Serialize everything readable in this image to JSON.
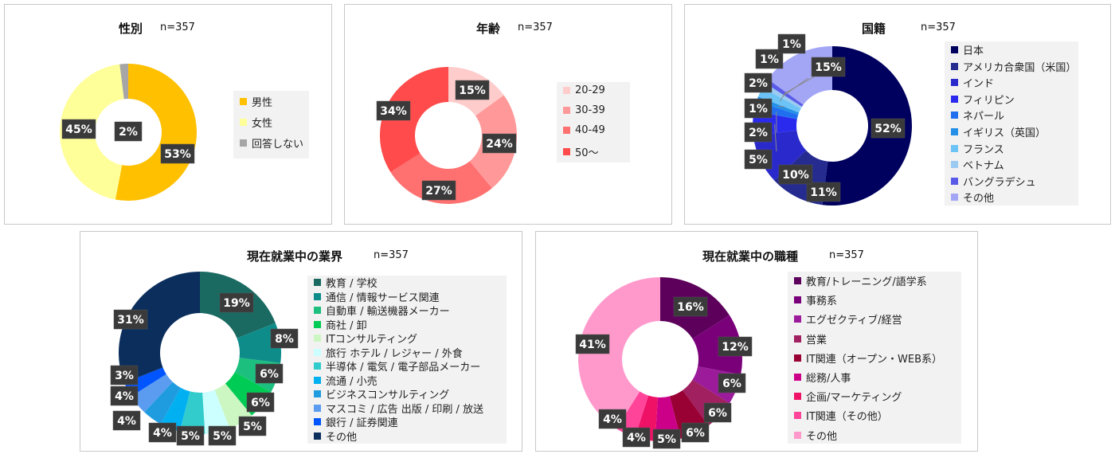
{
  "chart_data": [
    {
      "type": "pie",
      "title": "性別",
      "n_label": "n=357",
      "categories": [
        "男性",
        "女性",
        "回答しない"
      ],
      "values": [
        53,
        45,
        2
      ],
      "labels": [
        "53%",
        "45%",
        "2%"
      ],
      "colors": [
        "#FFC000",
        "#FFFF99",
        "#A6A6A6"
      ]
    },
    {
      "type": "pie",
      "title": "年齢",
      "n_label": "n=357",
      "categories": [
        "20-29",
        "30-39",
        "40-49",
        "50～"
      ],
      "values": [
        15,
        24,
        27,
        34
      ],
      "labels": [
        "15%",
        "24%",
        "27%",
        "34%"
      ],
      "colors": [
        "#FFCCCC",
        "#FF9999",
        "#FF7070",
        "#FF4B4B"
      ]
    },
    {
      "type": "pie",
      "title": "国籍",
      "n_label": "n=357",
      "categories": [
        "日本",
        "アメリカ合衆国（米国）",
        "インド",
        "フィリピン",
        "ネパール",
        "イギリス（英国）",
        "フランス",
        "ベトナム",
        "バングラデシュ",
        "その他"
      ],
      "values": [
        52,
        11,
        10,
        5,
        2,
        1,
        2,
        1,
        1,
        15
      ],
      "labels": [
        "52%",
        "11%",
        "10%",
        "5%",
        "2%",
        "1%",
        "2%",
        "1%",
        "1%",
        "15%"
      ],
      "colors": [
        "#00005E",
        "#252B8F",
        "#2A2ACC",
        "#2A2AEE",
        "#1F6FEE",
        "#2490E8",
        "#6CC3F5",
        "#9CCBF2",
        "#5A5AE8",
        "#A3A6F5"
      ]
    },
    {
      "type": "pie",
      "title": "現在就業中の業界",
      "n_label": "n=357",
      "categories": [
        "教育 / 学校",
        "通信 / 情報サービス関連",
        "自動車 / 輸送機器メーカー",
        "商社 / 卸",
        "ITコンサルティング",
        "旅行 ホテル / レジャー / 外食",
        "半導体 / 電気 / 電子部品メーカー",
        "流通 / 小売",
        "ビジネスコンサルティング",
        "マスコミ / 広告 出版 / 印刷 / 放送",
        "銀行 / 証券関連",
        "その他"
      ],
      "values": [
        19,
        8,
        6,
        6,
        5,
        5,
        5,
        4,
        4,
        4,
        3,
        31
      ],
      "labels": [
        "19%",
        "8%",
        "6%",
        "6%",
        "5%",
        "5%",
        "5%",
        "4%",
        "4%",
        "4%",
        "3%",
        "31%"
      ],
      "colors": [
        "#1A6A62",
        "#0E8C8A",
        "#1DBF7F",
        "#00CC55",
        "#CCF7C2",
        "#CCFFFF",
        "#33CCCC",
        "#00B0F0",
        "#1F9CE0",
        "#5B9BF0",
        "#0055FF",
        "#0B2E5C"
      ]
    },
    {
      "type": "pie",
      "title": "現在就業中の職種",
      "n_label": "n=357",
      "categories": [
        "教育/トレーニング/語学系",
        "事務系",
        "エグゼクティブ/経営",
        "営業",
        "IT関連（オープン・WEB系）",
        "総務/人事",
        "企画/マーケティング",
        "IT関連（その他）",
        "その他"
      ],
      "values": [
        16,
        12,
        6,
        6,
        6,
        5,
        4,
        4,
        41
      ],
      "labels": [
        "16%",
        "12%",
        "6%",
        "6%",
        "6%",
        "5%",
        "4%",
        "4%",
        "41%"
      ],
      "colors": [
        "#5C005C",
        "#7A007A",
        "#9B1B9B",
        "#A02060",
        "#990033",
        "#CC0088",
        "#EE1166",
        "#FF4499",
        "#FF99CC"
      ]
    }
  ]
}
